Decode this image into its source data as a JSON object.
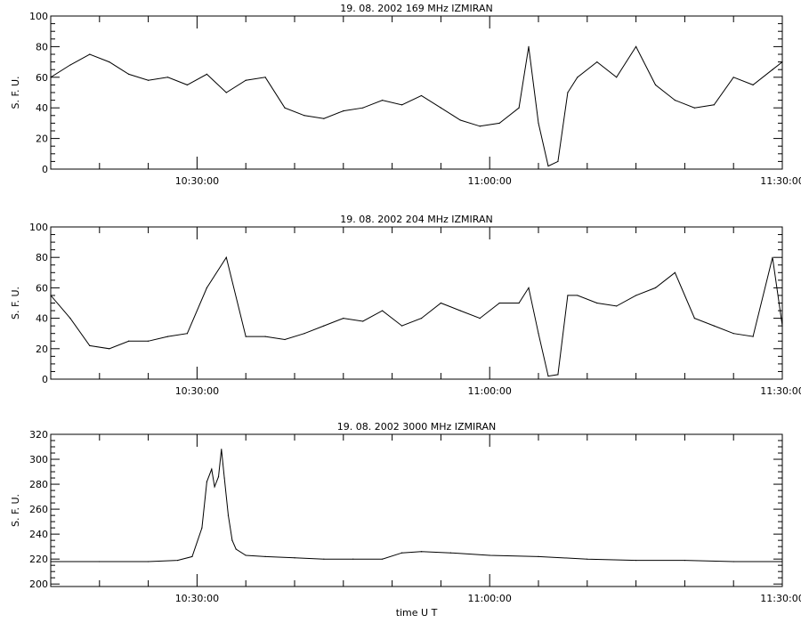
{
  "chart_data": [
    {
      "type": "line",
      "title": "19.  08.  2002    169 MHz    IZMIRAN",
      "ylabel": "S. F. U.",
      "xlabel": "",
      "x_units": "UT time",
      "xlim": [
        "10:15:00",
        "11:30:00"
      ],
      "ylim": [
        0,
        100
      ],
      "yticks": [
        0,
        20,
        40,
        60,
        80,
        100
      ],
      "xticks": [
        "10:30:00",
        "11:00:00",
        "11:30:00"
      ],
      "clipped_at_top": true,
      "series": [
        {
          "x": [
            "10:15",
            "10:17",
            "10:19",
            "10:21",
            "10:23",
            "10:25",
            "10:27",
            "10:29",
            "10:31",
            "10:33",
            "10:35",
            "10:37",
            "10:39",
            "10:41",
            "10:43",
            "10:45",
            "10:47",
            "10:49",
            "10:51",
            "10:53",
            "10:55",
            "10:57",
            "10:59",
            "11:01",
            "11:03",
            "11:04",
            "11:05",
            "11:06",
            "11:07",
            "11:08",
            "11:09",
            "11:11",
            "11:13",
            "11:15",
            "11:17",
            "11:19",
            "11:21",
            "11:23",
            "11:25",
            "11:27",
            "11:29",
            "11:30"
          ],
          "values": [
            60,
            68,
            75,
            70,
            62,
            58,
            60,
            55,
            62,
            50,
            58,
            60,
            40,
            35,
            33,
            38,
            40,
            45,
            42,
            48,
            40,
            32,
            28,
            30,
            40,
            80,
            30,
            2,
            5,
            50,
            60,
            70,
            60,
            80,
            55,
            45,
            40,
            42,
            60,
            55,
            65,
            70
          ]
        }
      ]
    },
    {
      "type": "line",
      "title": "19.  08.  2002    204 MHz    IZMIRAN",
      "ylabel": "S. F. U.",
      "xlabel": "",
      "x_units": "UT time",
      "xlim": [
        "10:15:00",
        "11:30:00"
      ],
      "ylim": [
        0,
        100
      ],
      "yticks": [
        0,
        20,
        40,
        60,
        80,
        100
      ],
      "xticks": [
        "10:30:00",
        "11:00:00",
        "11:30:00"
      ],
      "clipped_at_top": true,
      "series": [
        {
          "x": [
            "10:15",
            "10:17",
            "10:19",
            "10:21",
            "10:23",
            "10:25",
            "10:27",
            "10:29",
            "10:31",
            "10:33",
            "10:35",
            "10:37",
            "10:39",
            "10:41",
            "10:43",
            "10:45",
            "10:47",
            "10:49",
            "10:51",
            "10:53",
            "10:55",
            "10:57",
            "10:59",
            "11:01",
            "11:03",
            "11:04",
            "11:05",
            "11:06",
            "11:07",
            "11:08",
            "11:09",
            "11:11",
            "11:13",
            "11:15",
            "11:17",
            "11:19",
            "11:21",
            "11:23",
            "11:25",
            "11:27",
            "11:29",
            "11:30"
          ],
          "values": [
            55,
            40,
            22,
            20,
            25,
            25,
            28,
            30,
            60,
            80,
            28,
            28,
            26,
            30,
            35,
            40,
            38,
            45,
            35,
            40,
            50,
            45,
            40,
            50,
            50,
            60,
            30,
            2,
            3,
            55,
            55,
            50,
            48,
            55,
            60,
            70,
            40,
            35,
            30,
            28,
            80,
            35
          ]
        }
      ]
    },
    {
      "type": "line",
      "title": "19.  08.  2002    3000 MHz    IZMIRAN",
      "ylabel": "S. F. U.",
      "xlabel": "time  U T",
      "x_units": "UT time",
      "xlim": [
        "10:15:00",
        "11:30:00"
      ],
      "ylim": [
        198,
        320
      ],
      "yticks": [
        200,
        220,
        240,
        260,
        280,
        300,
        320
      ],
      "xticks": [
        "10:30:00",
        "11:00:00",
        "11:30:00"
      ],
      "series": [
        {
          "x": [
            "10:15",
            "10:20",
            "10:25",
            "10:28",
            "10:29.5",
            "10:30.5",
            "10:31",
            "10:31.5",
            "10:31.8",
            "10:32.2",
            "10:32.5",
            "10:32.8",
            "10:33.2",
            "10:33.6",
            "10:34",
            "10:35",
            "10:37",
            "10:40",
            "10:43",
            "10:46",
            "10:49",
            "10:51",
            "10:53",
            "10:56",
            "11:00",
            "11:05",
            "11:10",
            "11:15",
            "11:20",
            "11:25",
            "11:30"
          ],
          "values": [
            218,
            218,
            218,
            219,
            222,
            245,
            282,
            292,
            278,
            286,
            308,
            285,
            255,
            235,
            228,
            223,
            222,
            221,
            220,
            220,
            220,
            225,
            226,
            225,
            223,
            222,
            220,
            219,
            219,
            218,
            218
          ]
        }
      ]
    }
  ]
}
